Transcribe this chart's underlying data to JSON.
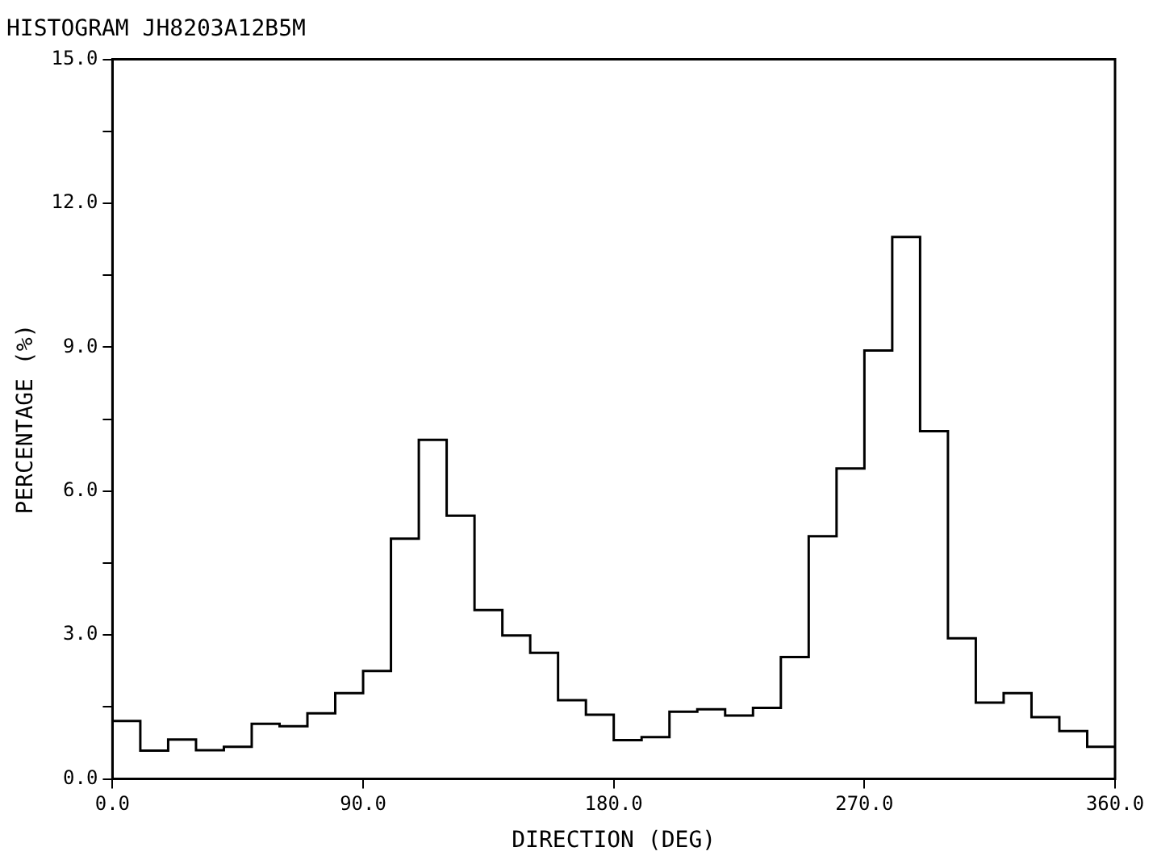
{
  "chart_data": {
    "type": "histogram",
    "title": "HISTOGRAM JH8203A12B5M",
    "xlabel": "DIRECTION (DEG)",
    "ylabel": "PERCENTAGE (%)",
    "bins": [
      0,
      10,
      20,
      30,
      40,
      50,
      60,
      70,
      80,
      90,
      100,
      110,
      120,
      130,
      140,
      150,
      160,
      170,
      180,
      190,
      200,
      210,
      220,
      230,
      240,
      250,
      260,
      270,
      280,
      290,
      300,
      310,
      320,
      330,
      340,
      350,
      360
    ],
    "values": [
      1.21,
      0.59,
      0.82,
      0.6,
      0.67,
      1.15,
      1.1,
      1.37,
      1.79,
      2.25,
      5.01,
      7.07,
      5.49,
      3.52,
      2.99,
      2.63,
      1.64,
      1.34,
      0.81,
      0.87,
      1.4,
      1.45,
      1.32,
      1.48,
      2.54,
      5.06,
      6.47,
      8.93,
      11.3,
      7.25,
      2.93,
      1.59,
      1.79,
      1.29,
      1.0,
      0.67
    ],
    "color": "#000000",
    "xlim": [
      0,
      360
    ],
    "xticks": [
      {
        "value": 0,
        "label": "0.0"
      },
      {
        "value": 90,
        "label": "90.0"
      },
      {
        "value": 180,
        "label": "180.0"
      },
      {
        "value": 270,
        "label": "270.0"
      },
      {
        "value": 360,
        "label": "360.0"
      }
    ],
    "ylim": [
      0,
      15
    ],
    "yticks": [
      {
        "value": 0,
        "label": "0.0"
      },
      {
        "value": 1.5,
        "label": null
      },
      {
        "value": 3,
        "label": "3.0"
      },
      {
        "value": 4.5,
        "label": null
      },
      {
        "value": 6,
        "label": "6.0"
      },
      {
        "value": 7.5,
        "label": null
      },
      {
        "value": 9,
        "label": "9.0"
      },
      {
        "value": 10.5,
        "label": null
      },
      {
        "value": 12,
        "label": "12.0"
      },
      {
        "value": 13.5,
        "label": null
      },
      {
        "value": 15,
        "label": "15.0"
      }
    ],
    "grid": false,
    "legend": false
  }
}
